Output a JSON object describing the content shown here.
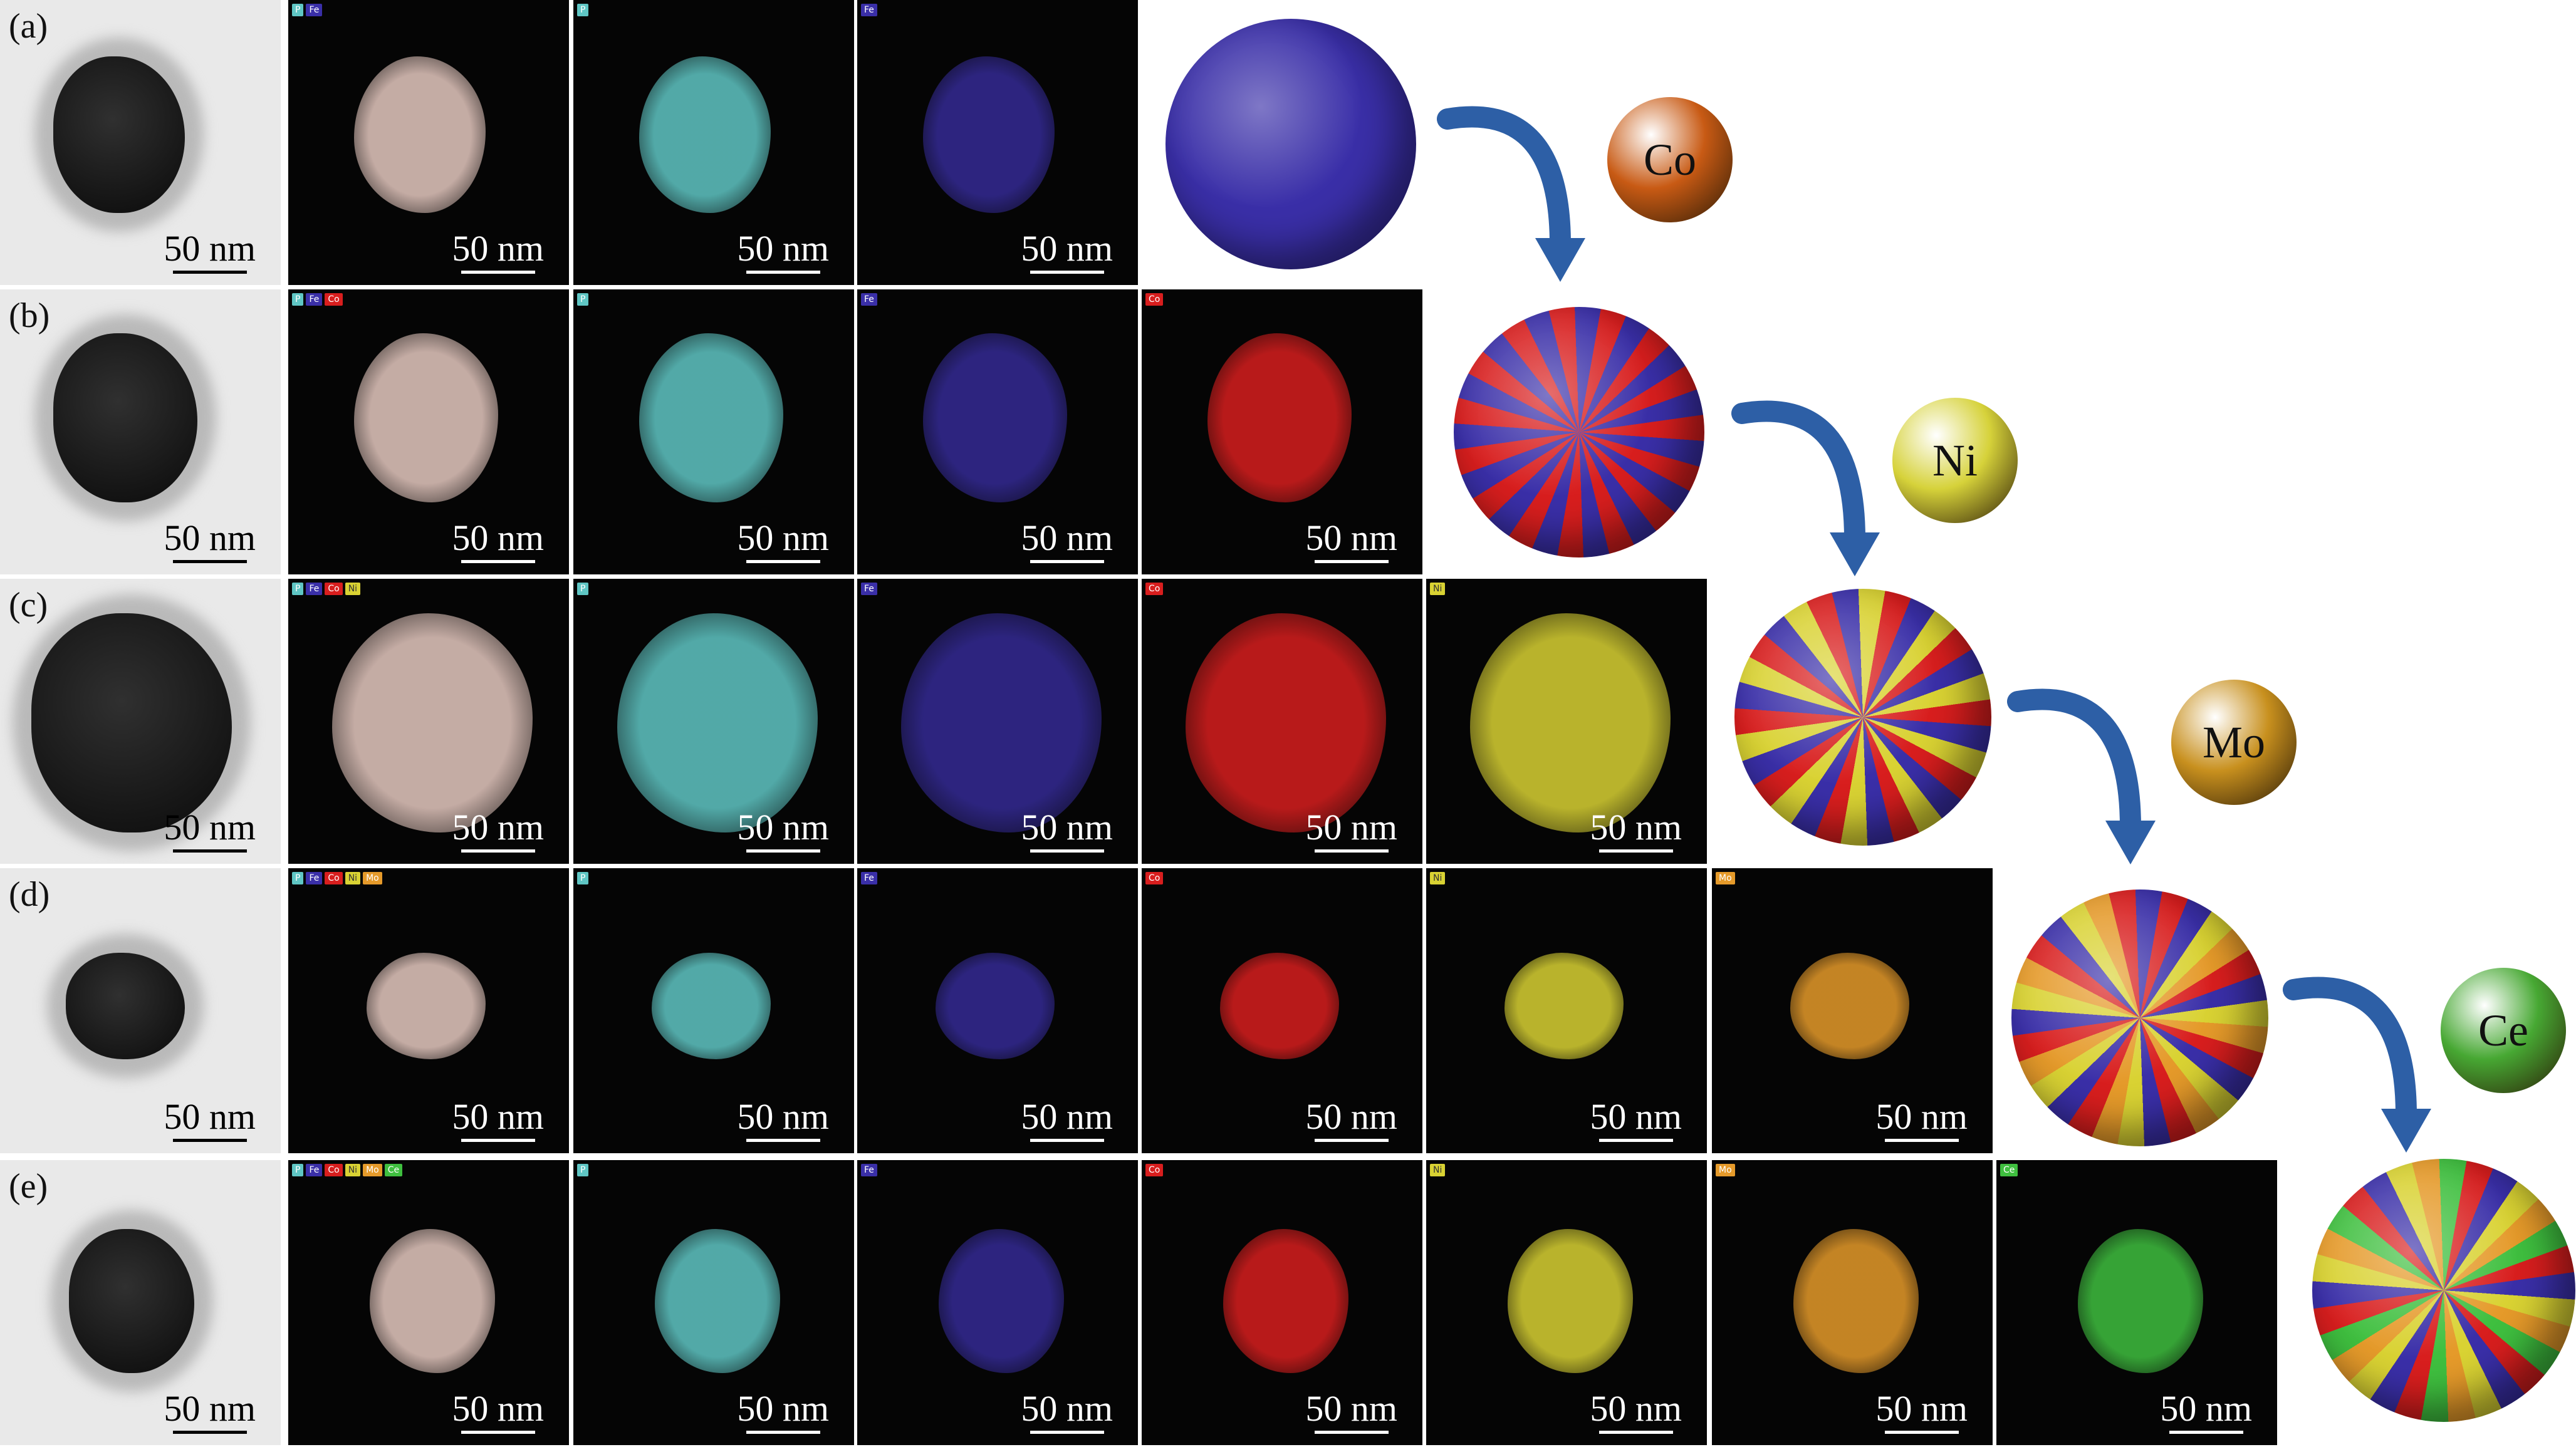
{
  "rows": [
    {
      "label": "(a)",
      "tem_scale": "50 nm",
      "maps": [
        {
          "tags": [
            "P",
            "Fe"
          ],
          "scale": "50 nm"
        },
        {
          "tags": [
            "P"
          ],
          "scale": "50 nm"
        },
        {
          "tags": [
            "Fe"
          ],
          "scale": "50 nm"
        }
      ]
    },
    {
      "label": "(b)",
      "tem_scale": "50 nm",
      "maps": [
        {
          "tags": [
            "P",
            "Fe",
            "Co"
          ],
          "scale": "50 nm"
        },
        {
          "tags": [
            "P"
          ],
          "scale": "50 nm"
        },
        {
          "tags": [
            "Fe"
          ],
          "scale": "50 nm"
        },
        {
          "tags": [
            "Co"
          ],
          "scale": "50 nm"
        }
      ]
    },
    {
      "label": "(c)",
      "tem_scale": "50 nm",
      "maps": [
        {
          "tags": [
            "P",
            "Fe",
            "Co",
            "Ni"
          ],
          "scale": "50 nm"
        },
        {
          "tags": [
            "P"
          ],
          "scale": "50 nm"
        },
        {
          "tags": [
            "Fe"
          ],
          "scale": "50 nm"
        },
        {
          "tags": [
            "Co"
          ],
          "scale": "50 nm"
        },
        {
          "tags": [
            "Ni"
          ],
          "scale": "50 nm"
        }
      ]
    },
    {
      "label": "(d)",
      "tem_scale": "50 nm",
      "maps": [
        {
          "tags": [
            "P",
            "Fe",
            "Co",
            "Ni",
            "Mo"
          ],
          "scale": "50 nm"
        },
        {
          "tags": [
            "P"
          ],
          "scale": "50 nm"
        },
        {
          "tags": [
            "Fe"
          ],
          "scale": "50 nm"
        },
        {
          "tags": [
            "Co"
          ],
          "scale": "50 nm"
        },
        {
          "tags": [
            "Ni"
          ],
          "scale": "50 nm"
        },
        {
          "tags": [
            "Mo"
          ],
          "scale": "50 nm"
        }
      ]
    },
    {
      "label": "(e)",
      "tem_scale": "50 nm",
      "maps": [
        {
          "tags": [
            "P",
            "Fe",
            "Co",
            "Ni",
            "Mo",
            "Ce"
          ],
          "scale": "50 nm"
        },
        {
          "tags": [
            "P"
          ],
          "scale": "50 nm"
        },
        {
          "tags": [
            "Fe"
          ],
          "scale": "50 nm"
        },
        {
          "tags": [
            "Co"
          ],
          "scale": "50 nm"
        },
        {
          "tags": [
            "Ni"
          ],
          "scale": "50 nm"
        },
        {
          "tags": [
            "Mo"
          ],
          "scale": "50 nm"
        },
        {
          "tags": [
            "Ce"
          ],
          "scale": "50 nm"
        }
      ]
    }
  ],
  "element_balls": [
    "Co",
    "Ni",
    "Mo",
    "Ce"
  ],
  "element_colors": {
    "P": "#5fc6c4",
    "Fe": "#3a2fa8",
    "Co": "#d81e1e",
    "Ni": "#d9d233",
    "Mo": "#e59a2a",
    "Ce": "#3fbf3f"
  },
  "ball_colors": {
    "Co": "#c85a14",
    "Ni": "#d6d23a",
    "Mo": "#c8901e",
    "Ce": "#47a833"
  }
}
